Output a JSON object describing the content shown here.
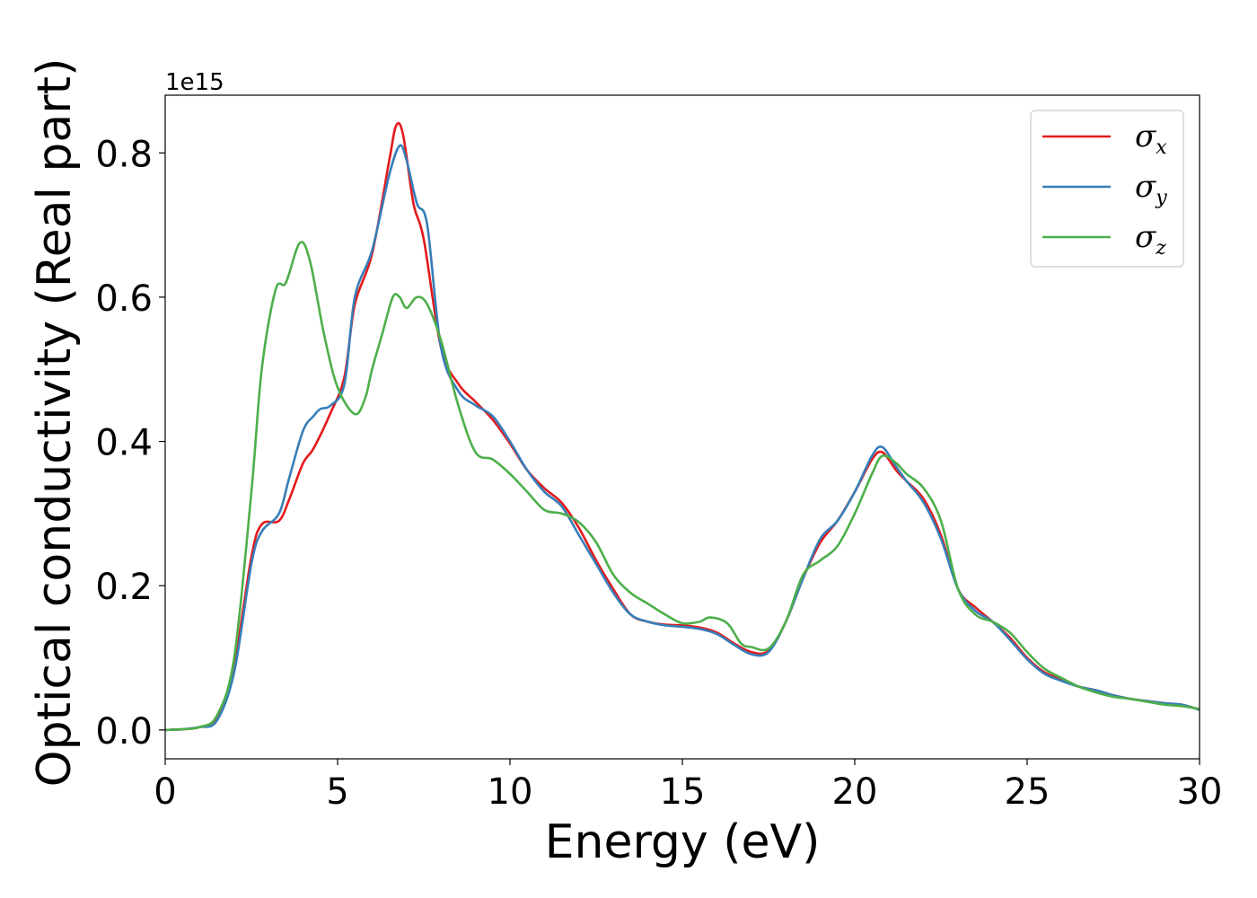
{
  "chart_data": {
    "type": "line",
    "xlabel": "Energy (eV)",
    "ylabel": "Optical conductivity (Real part)",
    "y_offset_text": "1e15",
    "y_scale_factor": 1000000000000000.0,
    "xlim": [
      0,
      30
    ],
    "ylim": [
      -0.04,
      0.88
    ],
    "x_ticks": [
      0,
      5,
      10,
      15,
      20,
      25,
      30
    ],
    "x_tick_labels": [
      "0",
      "5",
      "10",
      "15",
      "20",
      "25",
      "30"
    ],
    "y_ticks": [
      0.0,
      0.2,
      0.4,
      0.6,
      0.8
    ],
    "y_tick_labels": [
      "0.0",
      "0.2",
      "0.4",
      "0.6",
      "0.8"
    ],
    "grid": false,
    "legend_position": "top-right",
    "series": [
      {
        "name": "σx",
        "legend": {
          "symbol": "σ",
          "subscript": "x"
        },
        "color": "#e41a1c",
        "points": [
          [
            0,
            0
          ],
          [
            0.5,
            0.001
          ],
          [
            1.0,
            0.004
          ],
          [
            1.5,
            0.015
          ],
          [
            2.0,
            0.09
          ],
          [
            2.5,
            0.24
          ],
          [
            2.8,
            0.285
          ],
          [
            3.3,
            0.29
          ],
          [
            3.6,
            0.32
          ],
          [
            4.0,
            0.37
          ],
          [
            4.3,
            0.39
          ],
          [
            4.8,
            0.44
          ],
          [
            5.2,
            0.49
          ],
          [
            5.5,
            0.59
          ],
          [
            6.0,
            0.66
          ],
          [
            6.5,
            0.79
          ],
          [
            6.7,
            0.838
          ],
          [
            6.9,
            0.825
          ],
          [
            7.2,
            0.73
          ],
          [
            7.5,
            0.68
          ],
          [
            8.0,
            0.53
          ],
          [
            8.5,
            0.48
          ],
          [
            9.0,
            0.455
          ],
          [
            9.5,
            0.43
          ],
          [
            10.0,
            0.397
          ],
          [
            10.5,
            0.36
          ],
          [
            11.0,
            0.335
          ],
          [
            11.5,
            0.315
          ],
          [
            12.0,
            0.28
          ],
          [
            12.5,
            0.235
          ],
          [
            13.0,
            0.195
          ],
          [
            13.5,
            0.16
          ],
          [
            14.0,
            0.15
          ],
          [
            14.5,
            0.146
          ],
          [
            15.0,
            0.145
          ],
          [
            15.5,
            0.142
          ],
          [
            16.0,
            0.135
          ],
          [
            16.5,
            0.12
          ],
          [
            17.0,
            0.108
          ],
          [
            17.5,
            0.11
          ],
          [
            18.0,
            0.15
          ],
          [
            18.5,
            0.21
          ],
          [
            19.0,
            0.26
          ],
          [
            19.5,
            0.29
          ],
          [
            20.0,
            0.33
          ],
          [
            20.5,
            0.375
          ],
          [
            20.8,
            0.385
          ],
          [
            21.2,
            0.36
          ],
          [
            21.5,
            0.345
          ],
          [
            22.0,
            0.32
          ],
          [
            22.5,
            0.27
          ],
          [
            23.0,
            0.195
          ],
          [
            23.5,
            0.17
          ],
          [
            24.0,
            0.15
          ],
          [
            24.5,
            0.128
          ],
          [
            25.0,
            0.1
          ],
          [
            25.5,
            0.08
          ],
          [
            26.0,
            0.07
          ],
          [
            26.5,
            0.06
          ],
          [
            27.0,
            0.055
          ],
          [
            27.5,
            0.048
          ],
          [
            28.0,
            0.043
          ],
          [
            28.5,
            0.04
          ],
          [
            29.0,
            0.037
          ],
          [
            29.5,
            0.035
          ],
          [
            30.0,
            0.028
          ]
        ]
      },
      {
        "name": "σy",
        "legend": {
          "symbol": "σ",
          "subscript": "y"
        },
        "color": "#377eb8",
        "points": [
          [
            0,
            0
          ],
          [
            0.5,
            0.001
          ],
          [
            1.0,
            0.004
          ],
          [
            1.5,
            0.013
          ],
          [
            2.0,
            0.08
          ],
          [
            2.5,
            0.23
          ],
          [
            2.8,
            0.275
          ],
          [
            3.3,
            0.3
          ],
          [
            3.6,
            0.35
          ],
          [
            4.0,
            0.415
          ],
          [
            4.3,
            0.435
          ],
          [
            4.5,
            0.445
          ],
          [
            4.8,
            0.45
          ],
          [
            5.2,
            0.48
          ],
          [
            5.5,
            0.6
          ],
          [
            6.0,
            0.665
          ],
          [
            6.5,
            0.77
          ],
          [
            6.8,
            0.81
          ],
          [
            7.0,
            0.79
          ],
          [
            7.3,
            0.73
          ],
          [
            7.6,
            0.7
          ],
          [
            8.0,
            0.53
          ],
          [
            8.5,
            0.47
          ],
          [
            9.0,
            0.45
          ],
          [
            9.5,
            0.435
          ],
          [
            10.0,
            0.4
          ],
          [
            10.5,
            0.36
          ],
          [
            11.0,
            0.33
          ],
          [
            11.5,
            0.31
          ],
          [
            12.0,
            0.27
          ],
          [
            12.5,
            0.23
          ],
          [
            13.0,
            0.19
          ],
          [
            13.5,
            0.16
          ],
          [
            14.0,
            0.15
          ],
          [
            14.5,
            0.145
          ],
          [
            15.0,
            0.143
          ],
          [
            15.5,
            0.14
          ],
          [
            16.0,
            0.133
          ],
          [
            16.5,
            0.118
          ],
          [
            17.0,
            0.105
          ],
          [
            17.5,
            0.108
          ],
          [
            18.0,
            0.15
          ],
          [
            18.5,
            0.21
          ],
          [
            19.0,
            0.265
          ],
          [
            19.5,
            0.29
          ],
          [
            20.0,
            0.33
          ],
          [
            20.5,
            0.38
          ],
          [
            20.8,
            0.392
          ],
          [
            21.2,
            0.365
          ],
          [
            21.5,
            0.345
          ],
          [
            22.0,
            0.315
          ],
          [
            22.5,
            0.265
          ],
          [
            23.0,
            0.195
          ],
          [
            23.5,
            0.165
          ],
          [
            24.0,
            0.15
          ],
          [
            24.5,
            0.125
          ],
          [
            25.0,
            0.098
          ],
          [
            25.5,
            0.078
          ],
          [
            26.0,
            0.068
          ],
          [
            26.5,
            0.06
          ],
          [
            27.0,
            0.055
          ],
          [
            27.5,
            0.048
          ],
          [
            28.0,
            0.043
          ],
          [
            28.5,
            0.04
          ],
          [
            29.0,
            0.037
          ],
          [
            29.5,
            0.035
          ],
          [
            30.0,
            0.028
          ]
        ]
      },
      {
        "name": "σz",
        "legend": {
          "symbol": "σ",
          "subscript": "z"
        },
        "color": "#4daf4a",
        "points": [
          [
            0,
            0
          ],
          [
            0.5,
            0.001
          ],
          [
            1.0,
            0.004
          ],
          [
            1.5,
            0.02
          ],
          [
            2.0,
            0.1
          ],
          [
            2.5,
            0.33
          ],
          [
            2.8,
            0.5
          ],
          [
            3.2,
            0.61
          ],
          [
            3.5,
            0.62
          ],
          [
            3.9,
            0.675
          ],
          [
            4.2,
            0.65
          ],
          [
            4.6,
            0.55
          ],
          [
            5.0,
            0.475
          ],
          [
            5.5,
            0.438
          ],
          [
            5.8,
            0.46
          ],
          [
            6.0,
            0.5
          ],
          [
            6.3,
            0.55
          ],
          [
            6.6,
            0.6
          ],
          [
            6.8,
            0.6
          ],
          [
            7.0,
            0.585
          ],
          [
            7.3,
            0.6
          ],
          [
            7.6,
            0.59
          ],
          [
            8.0,
            0.54
          ],
          [
            8.5,
            0.45
          ],
          [
            9.0,
            0.385
          ],
          [
            9.5,
            0.375
          ],
          [
            10.0,
            0.355
          ],
          [
            10.5,
            0.33
          ],
          [
            11.0,
            0.305
          ],
          [
            11.5,
            0.3
          ],
          [
            12.0,
            0.288
          ],
          [
            12.5,
            0.26
          ],
          [
            13.0,
            0.215
          ],
          [
            13.5,
            0.19
          ],
          [
            14.0,
            0.175
          ],
          [
            14.5,
            0.16
          ],
          [
            15.0,
            0.148
          ],
          [
            15.5,
            0.15
          ],
          [
            15.8,
            0.156
          ],
          [
            16.3,
            0.148
          ],
          [
            16.7,
            0.12
          ],
          [
            17.0,
            0.115
          ],
          [
            17.5,
            0.113
          ],
          [
            18.0,
            0.15
          ],
          [
            18.5,
            0.215
          ],
          [
            19.0,
            0.235
          ],
          [
            19.5,
            0.255
          ],
          [
            20.0,
            0.3
          ],
          [
            20.5,
            0.355
          ],
          [
            20.8,
            0.38
          ],
          [
            21.2,
            0.37
          ],
          [
            21.5,
            0.355
          ],
          [
            22.0,
            0.335
          ],
          [
            22.5,
            0.29
          ],
          [
            23.0,
            0.195
          ],
          [
            23.5,
            0.16
          ],
          [
            24.0,
            0.15
          ],
          [
            24.5,
            0.135
          ],
          [
            25.0,
            0.108
          ],
          [
            25.5,
            0.085
          ],
          [
            26.0,
            0.072
          ],
          [
            26.5,
            0.06
          ],
          [
            27.0,
            0.052
          ],
          [
            27.5,
            0.046
          ],
          [
            28.0,
            0.043
          ],
          [
            28.5,
            0.039
          ],
          [
            29.0,
            0.035
          ],
          [
            29.5,
            0.033
          ],
          [
            30.0,
            0.029
          ]
        ]
      }
    ]
  }
}
